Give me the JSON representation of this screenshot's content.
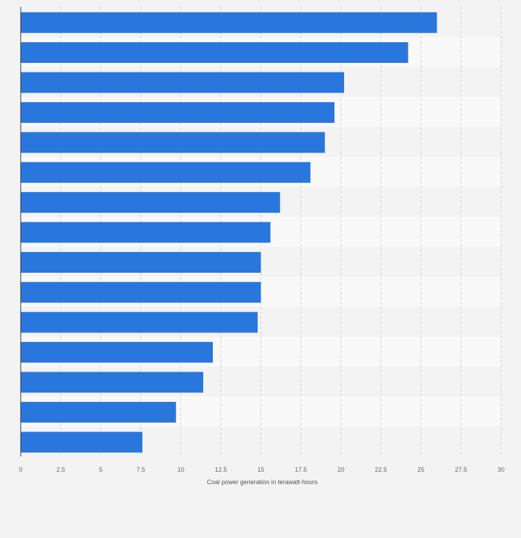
{
  "chart_data": {
    "type": "bar",
    "orientation": "horizontal",
    "title": "",
    "xlabel": "Coal power generation in terawatt-hours",
    "ylabel": "",
    "xlim": [
      0,
      30
    ],
    "x_ticks": [
      "0",
      "2.5",
      "5",
      "7.5",
      "10",
      "12.5",
      "15",
      "17.5",
      "20",
      "22.5",
      "25",
      "27.5",
      "30"
    ],
    "x_tick_values": [
      0,
      2.5,
      5,
      7.5,
      10,
      12.5,
      15,
      17.5,
      20,
      22.5,
      25,
      27.5,
      30
    ],
    "values": [
      26.0,
      24.2,
      20.2,
      19.6,
      19.0,
      18.1,
      16.2,
      15.6,
      15.0,
      15.0,
      14.8,
      12.0,
      11.4,
      9.7,
      7.6
    ],
    "grid": true,
    "legend": "none",
    "bar_color": "#2977dd"
  }
}
